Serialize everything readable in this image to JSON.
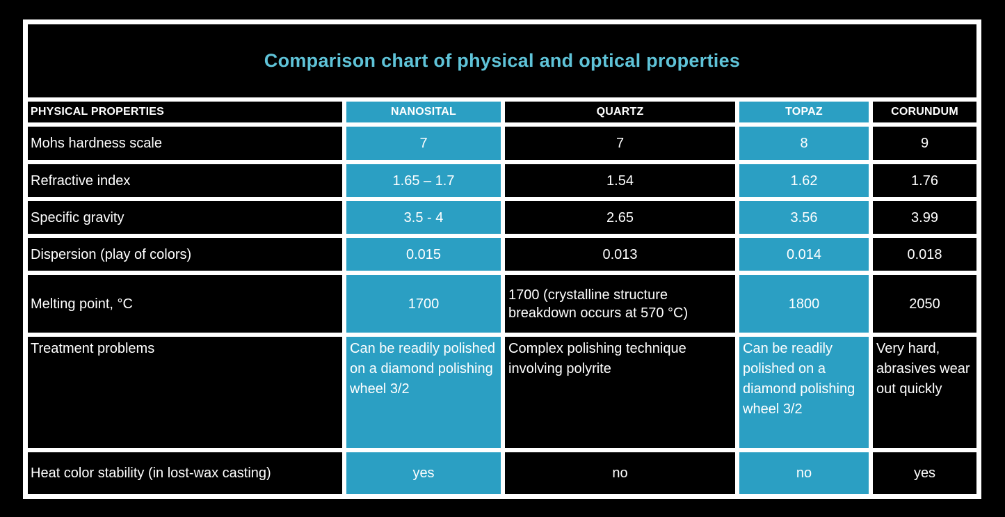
{
  "colors": {
    "accent_teal": "#2b9fc3",
    "title_cyan": "#5fc3d8",
    "grid_line": "#ffffff",
    "background": "#000000",
    "text": "#ffffff"
  },
  "chart_data": {
    "type": "table",
    "title": "Comparison chart of physical and optical properties",
    "columns": [
      "PHYSICAL PROPERTIES",
      "NANOSITAL",
      "QUARTZ",
      "TOPAZ",
      "CORUNDUM"
    ],
    "highlighted_columns": [
      "NANOSITAL",
      "TOPAZ"
    ],
    "rows": [
      {
        "property": "Mohs hardness scale",
        "values": [
          "7",
          "7",
          "8",
          "9"
        ]
      },
      {
        "property": "Refractive index",
        "values": [
          "1.65 – 1.7",
          "1.54",
          "1.62",
          "1.76"
        ]
      },
      {
        "property": "Specific gravity",
        "values": [
          "3.5 - 4",
          "2.65",
          "3.56",
          "3.99"
        ]
      },
      {
        "property": "Dispersion (play of colors)",
        "values": [
          "0.015",
          "0.013",
          "0.014",
          "0.018"
        ]
      },
      {
        "property": "Melting point, °C",
        "values": [
          "1700",
          "1700 (crystalline structure breakdown occurs at 570 °C)",
          "1800",
          "2050"
        ]
      },
      {
        "property": "Treatment problems",
        "values": [
          "Can be readily polished on a diamond polishing wheel 3/2",
          "Complex polishing technique involving polyrite",
          "Can be readily polished on a diamond polishing wheel 3/2",
          "Very hard, abrasives wear out quickly"
        ]
      },
      {
        "property": "Heat color stability (in lost-wax casting)",
        "values": [
          "yes",
          "no",
          "no",
          "yes"
        ]
      }
    ]
  }
}
